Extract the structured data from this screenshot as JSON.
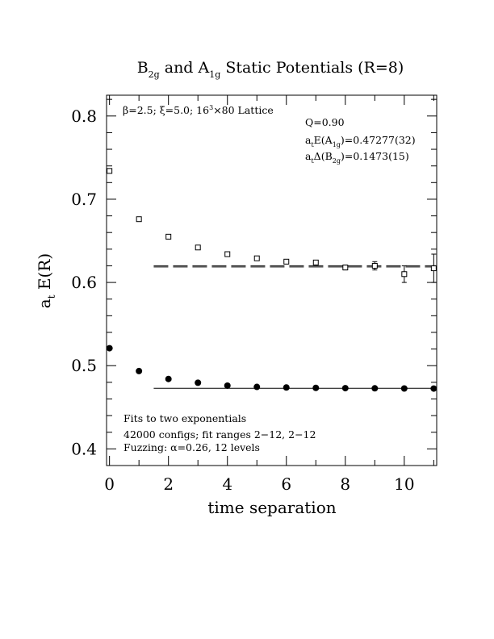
{
  "chart_data": {
    "type": "scatter",
    "title": {
      "main_1": "B",
      "sub_1": "2g",
      "main_2": " and A",
      "sub_2": "1g",
      "main_3": " Static Potentials (R=8)"
    },
    "xlabel": "time separation",
    "ylabel": {
      "main": "a",
      "sub": "t",
      "rest": " E(R)"
    },
    "xlim": [
      -0.1,
      11.1
    ],
    "ylim": [
      0.38,
      0.825
    ],
    "x_ticks": [
      "0",
      "2",
      "4",
      "6",
      "8",
      "10"
    ],
    "y_ticks": [
      "0.4",
      "0.5",
      "0.6",
      "0.7",
      "0.8"
    ],
    "annotations": {
      "lattice": {
        "beta": "β=2.5; ξ=5.0; 16",
        "sup": "3",
        "rest": "×80 Lattice"
      },
      "q": "Q=0.90",
      "a1g": {
        "pre": "a",
        "sub1": "t",
        "mid": "E(A",
        "sub2": "1g",
        "post": ")=0.47277(32)"
      },
      "b2g": {
        "pre": "a",
        "sub1": "t",
        "mid": "Δ(B",
        "sub2": "2g",
        "post": ")=0.1473(15)"
      },
      "fits": "Fits to two exponentials",
      "configs": "42000 configs; fit ranges 2−12, 2−12",
      "fuzzing": "Fuzzing: α=0.26, 12 levels"
    },
    "series": [
      {
        "marker": "filled-circle",
        "x": [
          0,
          1,
          2,
          3,
          4,
          5,
          6,
          7,
          8,
          9,
          10,
          11
        ],
        "y": [
          0.521,
          0.4935,
          0.484,
          0.4795,
          0.476,
          0.4745,
          0.4738,
          0.4733,
          0.473,
          0.4728,
          0.4726,
          0.4725
        ]
      },
      {
        "marker": "open-square",
        "x": [
          0,
          1,
          2,
          3,
          4,
          5,
          6,
          7,
          8,
          9,
          10,
          11
        ],
        "y": [
          0.734,
          0.676,
          0.655,
          0.642,
          0.634,
          0.629,
          0.625,
          0.624,
          0.618,
          0.62,
          0.61,
          0.617
        ],
        "err": [
          0.001,
          0.001,
          0.001,
          0.001,
          0.001,
          0.002,
          0.002,
          0.002,
          0.003,
          0.005,
          0.01,
          0.017
        ]
      }
    ],
    "fit_lines": [
      {
        "x": [
          1.5,
          11.1
        ],
        "y": 0.47277,
        "style": "solid"
      },
      {
        "x": [
          1.5,
          11.1
        ],
        "y": 0.6201,
        "style": "dashed"
      },
      {
        "x": [
          1.5,
          11.1
        ],
        "y": 0.6186,
        "style": "dashed"
      }
    ]
  }
}
